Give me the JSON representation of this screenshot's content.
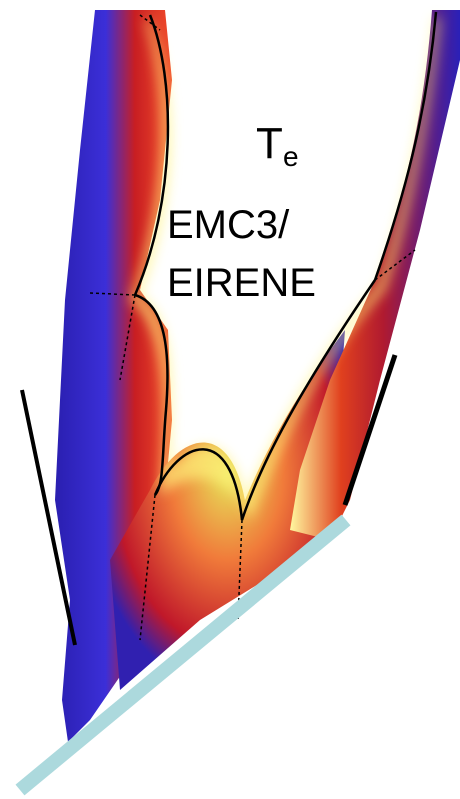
{
  "label": {
    "quantity": "T",
    "subscript": "e"
  },
  "code": {
    "line1": "EMC3/",
    "line2": "EIRENE"
  }
}
